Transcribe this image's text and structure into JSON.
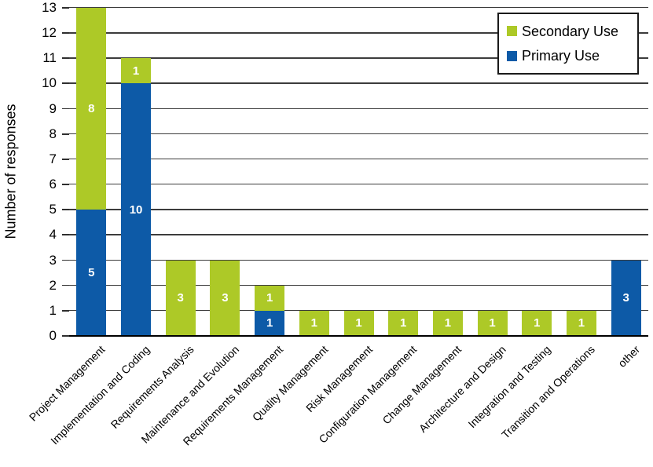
{
  "chart_data": {
    "type": "bar",
    "stacked": true,
    "title": "",
    "xlabel": "",
    "ylabel": "Number of responses",
    "ylim": [
      0,
      13
    ],
    "ytick_step": 1,
    "grid": true,
    "legend_position": "top-right",
    "categories": [
      "Project Management",
      "Implementation and Coding",
      "Requirements Analysis",
      "Maintenance and Evolution",
      "Requirements Management",
      "Quality Management",
      "Risk Management",
      "Configuration Management",
      "Change Management",
      "Architecture and Design",
      "Integration and Testing",
      "Transition and Operations",
      "other"
    ],
    "series": [
      {
        "name": "Primary Use",
        "color": "#0d5aa7",
        "values": [
          5,
          10,
          0,
          0,
          1,
          0,
          0,
          0,
          0,
          0,
          0,
          0,
          3
        ]
      },
      {
        "name": "Secondary Use",
        "color": "#adc927",
        "values": [
          8,
          1,
          3,
          3,
          1,
          1,
          1,
          1,
          1,
          1,
          1,
          1,
          0
        ]
      }
    ],
    "legend": [
      {
        "label": "Secondary Use",
        "series_index": 1
      },
      {
        "label": "Primary Use",
        "series_index": 0
      }
    ]
  }
}
